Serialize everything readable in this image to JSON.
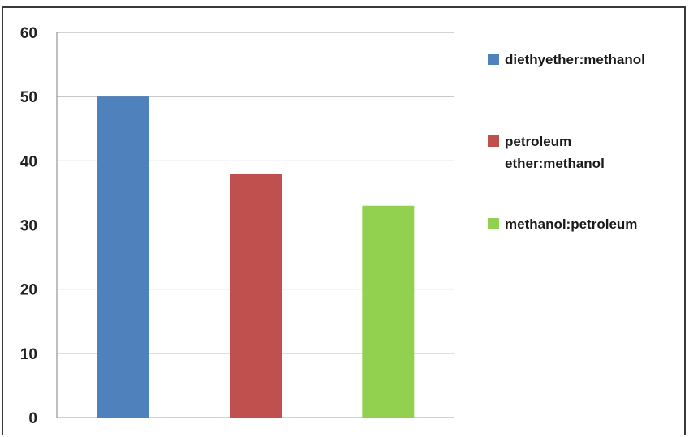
{
  "chart_data": {
    "type": "bar",
    "categories": [
      "diethyether:methanol",
      "petroleum ether:methanol",
      "methanol:petroleum"
    ],
    "values": [
      50,
      38,
      33
    ],
    "colors": [
      "#4f81bd",
      "#c0504d",
      "#92d050"
    ],
    "ylim": [
      0,
      60
    ],
    "yticks": [
      "0",
      "10",
      "20",
      "30",
      "40",
      "50",
      "60"
    ],
    "grid": true,
    "legend": {
      "placement": "right",
      "entries": [
        {
          "lines": [
            "diethyether:methanol"
          ],
          "color": "#4f81bd"
        },
        {
          "lines": [
            "petroleum",
            "ether:methanol"
          ],
          "color": "#c0504d"
        },
        {
          "lines": [
            "methanol:petroleum"
          ],
          "color": "#92d050"
        }
      ]
    }
  }
}
